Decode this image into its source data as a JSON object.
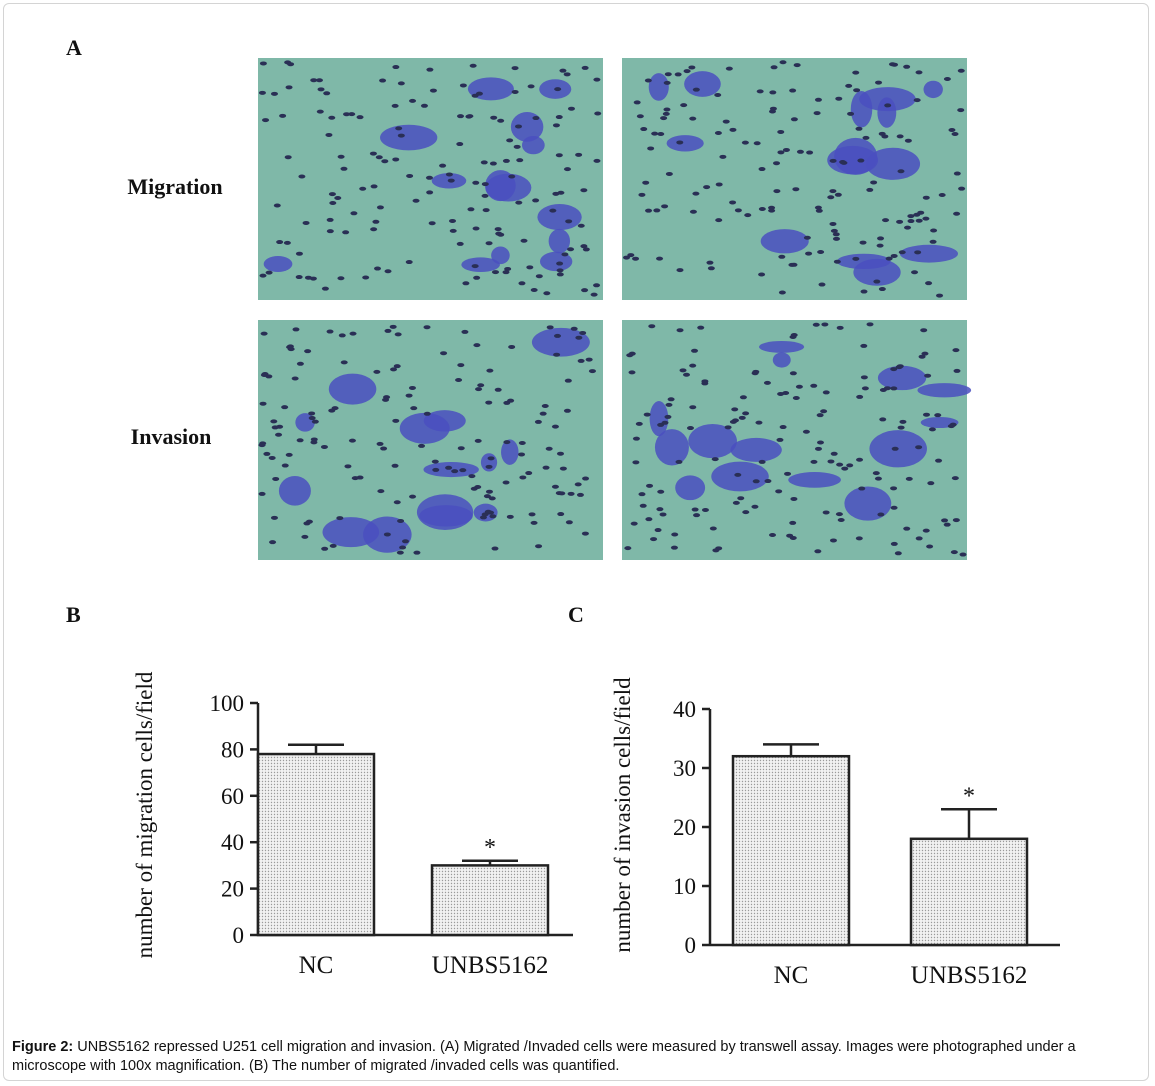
{
  "panel_labels": [
    "A",
    "B",
    "C"
  ],
  "row_labels": [
    "Migration",
    "Invasion"
  ],
  "caption": {
    "lead": "Figure 2:",
    "text": "UNBS5162 repressed U251 cell migration and invasion. (A) Migrated /Invaded cells were measured by transwell assay. Images were photographed under a microscope with 100x magnification. (B) The number of migrated /invaded cells was quantified."
  },
  "chart_data": [
    {
      "type": "bar",
      "ylabel": "number of migration cells/field",
      "categories": [
        "NC",
        "UNBS5162"
      ],
      "values": [
        78,
        30
      ],
      "errors": [
        4,
        2
      ],
      "markers": [
        null,
        "*"
      ],
      "color": "#e4e4e4",
      "ylim": [
        0,
        100
      ],
      "yticks": [
        0,
        20,
        40,
        60,
        80,
        100
      ]
    },
    {
      "type": "bar",
      "ylabel": "number of invasion cells/field",
      "categories": [
        "NC",
        "UNBS5162"
      ],
      "values": [
        32,
        18
      ],
      "errors": [
        2,
        5
      ],
      "markers": [
        null,
        "*"
      ],
      "color": "#e4e4e4",
      "ylim": [
        0,
        40
      ],
      "yticks": [
        0,
        10,
        20,
        30,
        40
      ]
    }
  ]
}
